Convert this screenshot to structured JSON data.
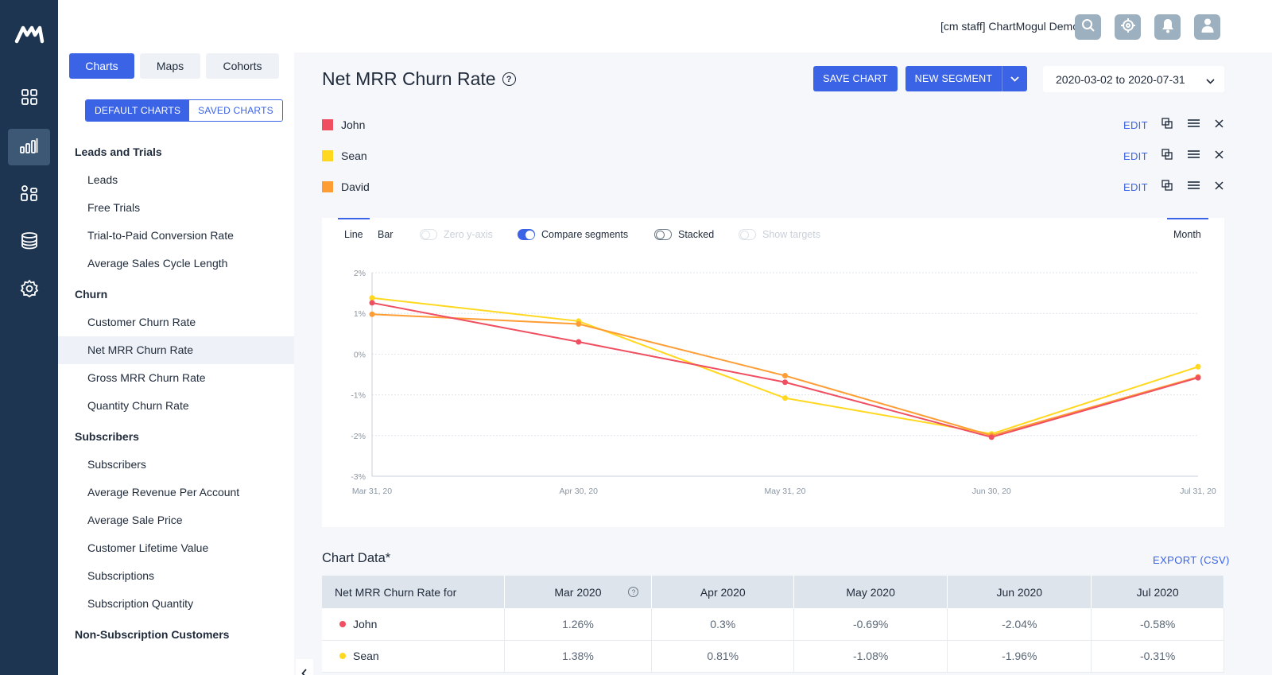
{
  "app": {
    "user_label": "[cm staff] ChartMogul Demo"
  },
  "rail": {
    "items": [
      {
        "icon": "dashboard-grid-icon"
      },
      {
        "icon": "bar-chart-icon",
        "active": true
      },
      {
        "icon": "customers-icon"
      },
      {
        "icon": "database-icon"
      },
      {
        "icon": "settings-gear-icon"
      }
    ]
  },
  "topbar": {
    "buttons": [
      {
        "icon": "search-icon"
      },
      {
        "icon": "crosshair-icon"
      },
      {
        "icon": "bell-icon"
      },
      {
        "icon": "user-icon"
      }
    ]
  },
  "sidebar": {
    "tabs": [
      "Charts",
      "Maps",
      "Cohorts"
    ],
    "active_tab": "Charts",
    "subtabs": [
      "DEFAULT CHARTS",
      "SAVED CHARTS"
    ],
    "active_subtab": "DEFAULT CHARTS",
    "groups": [
      {
        "title": "Leads and Trials",
        "items": [
          "Leads",
          "Free Trials",
          "Trial-to-Paid Conversion Rate",
          "Average Sales Cycle Length"
        ]
      },
      {
        "title": "Churn",
        "items": [
          "Customer Churn Rate",
          "Net MRR Churn Rate",
          "Gross MRR Churn Rate",
          "Quantity Churn Rate"
        ]
      },
      {
        "title": "Subscribers",
        "items": [
          "Subscribers",
          "Average Revenue Per Account",
          "Average Sale Price",
          "Customer Lifetime Value",
          "Subscriptions",
          "Subscription Quantity"
        ]
      },
      {
        "title": "Non-Subscription Customers",
        "items": []
      }
    ],
    "active_item": "Net MRR Churn Rate"
  },
  "main": {
    "title": "Net MRR Churn Rate",
    "save_chart": "SAVE CHART",
    "new_segment": "NEW SEGMENT",
    "date_range": "2020-03-02 to 2020-07-31",
    "segments": [
      {
        "name": "John",
        "color": "#ef4f61",
        "edit": "EDIT"
      },
      {
        "name": "Sean",
        "color": "#ffd81f",
        "edit": "EDIT"
      },
      {
        "name": "David",
        "color": "#ff9d35",
        "edit": "EDIT"
      }
    ],
    "chart_options": {
      "line": "Line",
      "bar": "Bar",
      "zero_y_axis": "Zero y-axis",
      "compare_segments": "Compare segments",
      "stacked": "Stacked",
      "show_targets": "Show targets",
      "interval": "Month"
    },
    "data_title": "Chart Data*",
    "export": "EXPORT (CSV)"
  },
  "chart_data": {
    "type": "line",
    "x": [
      "Mar 31, 20",
      "Apr 30, 20",
      "May 31, 20",
      "Jun 30, 20",
      "Jul 31, 20"
    ],
    "y_ticks": [
      "2%",
      "1%",
      "0%",
      "-1%",
      "-2%",
      "-3%"
    ],
    "ylim": [
      -3,
      2
    ],
    "grid": true,
    "series": [
      {
        "name": "John",
        "color": "#ef4f61",
        "values": [
          1.26,
          0.3,
          -0.69,
          -2.04,
          -0.58
        ]
      },
      {
        "name": "Sean",
        "color": "#ffd81f",
        "values": [
          1.38,
          0.81,
          -1.08,
          -1.96,
          -0.31
        ]
      },
      {
        "name": "David",
        "color": "#ff9d35",
        "values": [
          0.98,
          0.74,
          -0.53,
          -2.0,
          -0.56
        ]
      }
    ]
  },
  "table": {
    "headers": [
      "Net MRR Churn Rate for",
      "Mar 2020",
      "Apr 2020",
      "May 2020",
      "Jun 2020",
      "Jul 2020"
    ],
    "rows": [
      {
        "name": "John",
        "color": "#ef4f61",
        "values": [
          "1.26%",
          "0.3%",
          "-0.69%",
          "-2.04%",
          "-0.58%"
        ]
      },
      {
        "name": "Sean",
        "color": "#ffd81f",
        "values": [
          "1.38%",
          "0.81%",
          "-1.08%",
          "-1.96%",
          "-0.31%"
        ]
      }
    ]
  }
}
